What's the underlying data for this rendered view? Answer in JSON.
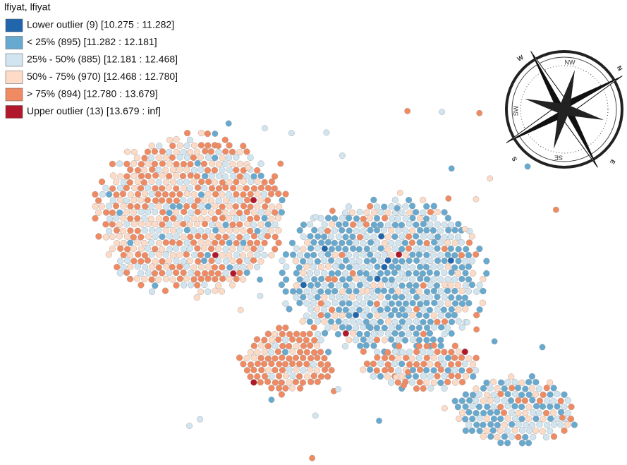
{
  "legend": {
    "title": "lfiyat, lfiyat",
    "items": [
      {
        "label": "Lower outlier (9)  [10.275 : 11.282]",
        "color": "#2166ac"
      },
      {
        "label": "< 25% (895)  [11.282 : 12.181]",
        "color": "#67a9cf"
      },
      {
        "label": "25% - 50% (885)  [12.181 : 12.468]",
        "color": "#d1e5f0"
      },
      {
        "label": "50% - 75% (970)  [12.468 : 12.780]",
        "color": "#fddbc7"
      },
      {
        "label": "> 75% (894)  [12.780 : 13.679]",
        "color": "#ef8a62"
      },
      {
        "label": "Upper outlier (13)  [13.679 : inf]",
        "color": "#b2182b"
      }
    ]
  },
  "compass": {
    "labels": [
      "W",
      "NW",
      "N",
      "SW",
      "S",
      "SE",
      "E"
    ]
  }
}
